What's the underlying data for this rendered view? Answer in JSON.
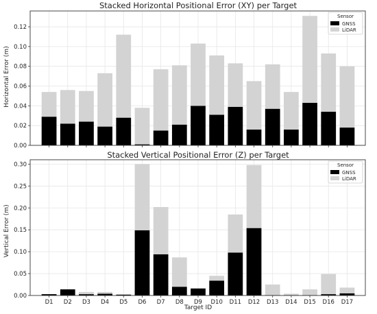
{
  "chart_data": [
    {
      "type": "bar",
      "stacked": true,
      "title": "Stacked Horizontal Positional Error (XY) per Target",
      "xlabel": "",
      "ylabel": "Horizontal Error (m)",
      "categories": [
        "D1",
        "D2",
        "D3",
        "D4",
        "D5",
        "D6",
        "D7",
        "D8",
        "D9",
        "D10",
        "D11",
        "D12",
        "D13",
        "D14",
        "D15",
        "D16",
        "D17"
      ],
      "ylim": [
        0,
        0.136
      ],
      "yticks": [
        0.0,
        0.02,
        0.04,
        0.06,
        0.08,
        0.1,
        0.12
      ],
      "ytick_labels": [
        "0.00",
        "0.02",
        "0.04",
        "0.06",
        "0.08",
        "0.10",
        "0.12"
      ],
      "show_xtick_labels": false,
      "grid": true,
      "legend": {
        "title": "Sensor",
        "position": "top-right"
      },
      "series": [
        {
          "name": "GNSS",
          "color": "#000000",
          "values": [
            0.029,
            0.022,
            0.024,
            0.019,
            0.028,
            0.001,
            0.015,
            0.021,
            0.04,
            0.031,
            0.039,
            0.016,
            0.037,
            0.016,
            0.043,
            0.034,
            0.018
          ]
        },
        {
          "name": "LiDAR",
          "color": "#d3d3d3",
          "values": [
            0.025,
            0.034,
            0.031,
            0.054,
            0.084,
            0.037,
            0.062,
            0.06,
            0.063,
            0.06,
            0.044,
            0.049,
            0.045,
            0.038,
            0.088,
            0.059,
            0.062
          ]
        }
      ]
    },
    {
      "type": "bar",
      "stacked": true,
      "title": "Stacked Vertical Positional Error (Z) per Target",
      "xlabel": "Target ID",
      "ylabel": "Vertical Error (m)",
      "categories": [
        "D1",
        "D2",
        "D3",
        "D4",
        "D5",
        "D6",
        "D7",
        "D8",
        "D9",
        "D10",
        "D11",
        "D12",
        "D13",
        "D14",
        "D15",
        "D16",
        "D17"
      ],
      "ylim": [
        0,
        0.31
      ],
      "yticks": [
        0.0,
        0.05,
        0.1,
        0.15,
        0.2,
        0.25,
        0.3
      ],
      "ytick_labels": [
        "0.00",
        "0.05",
        "0.10",
        "0.15",
        "0.20",
        "0.25",
        "0.30"
      ],
      "show_xtick_labels": true,
      "grid": true,
      "legend": {
        "title": "Sensor",
        "position": "top-right"
      },
      "series": [
        {
          "name": "GNSS",
          "color": "#000000",
          "values": [
            0.003,
            0.014,
            0.003,
            0.004,
            0.002,
            0.149,
            0.094,
            0.02,
            0.016,
            0.034,
            0.098,
            0.154,
            0.001,
            0.001,
            0.001,
            0.003,
            0.005
          ]
        },
        {
          "name": "LiDAR",
          "color": "#d3d3d3",
          "values": [
            0.0,
            0.0,
            0.005,
            0.004,
            0.001,
            0.151,
            0.108,
            0.067,
            0.0,
            0.011,
            0.087,
            0.144,
            0.024,
            0.003,
            0.013,
            0.046,
            0.013
          ]
        }
      ]
    }
  ]
}
